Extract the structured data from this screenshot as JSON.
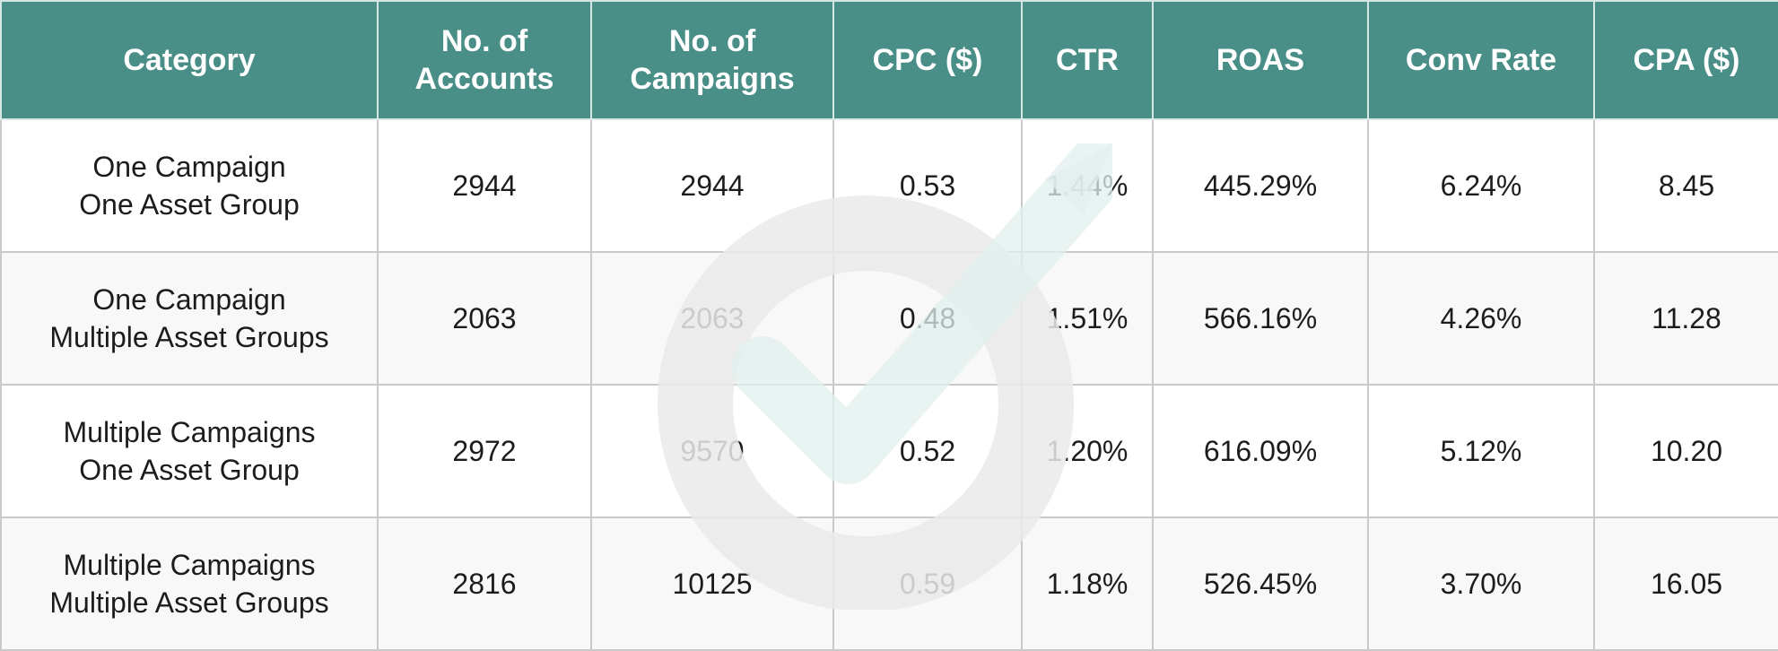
{
  "chart_data": {
    "type": "table",
    "columns": [
      "Category",
      "No. of\nAccounts",
      "No. of\nCampaigns",
      "CPC ($)",
      "CTR",
      "ROAS",
      "Conv Rate",
      "CPA ($)"
    ],
    "column_lines": [
      [
        "Category"
      ],
      [
        "No. of",
        "Accounts"
      ],
      [
        "No. of",
        "Campaigns"
      ],
      [
        "CPC ($)"
      ],
      [
        "CTR"
      ],
      [
        "ROAS"
      ],
      [
        "Conv Rate"
      ],
      [
        "CPA ($)"
      ]
    ],
    "rows": [
      {
        "category_lines": [
          "One Campaign",
          "One Asset Group"
        ],
        "values": [
          "2944",
          "2944",
          "0.53",
          "1.44%",
          "445.29%",
          "6.24%",
          "8.45"
        ]
      },
      {
        "category_lines": [
          "One Campaign",
          "Multiple Asset Groups"
        ],
        "values": [
          "2063",
          "2063",
          "0.48",
          "1.51%",
          "566.16%",
          "4.26%",
          "11.28"
        ]
      },
      {
        "category_lines": [
          "Multiple Campaigns",
          "One Asset Group"
        ],
        "values": [
          "2972",
          "9570",
          "0.52",
          "1.20%",
          "616.09%",
          "5.12%",
          "10.20"
        ]
      },
      {
        "category_lines": [
          "Multiple Campaigns",
          "Multiple Asset Groups"
        ],
        "values": [
          "2816",
          "10125",
          "0.59",
          "1.18%",
          "526.45%",
          "3.70%",
          "16.05"
        ]
      }
    ]
  },
  "colors": {
    "header_bg": "#4a8e88",
    "header_text": "#ffffff",
    "row_alt_bg": "#f4f4f4",
    "watermark_gray": "#ececec",
    "watermark_teal": "#e4f1ef"
  },
  "icons": {
    "watermark": "target-arrow-watermark-icon"
  }
}
